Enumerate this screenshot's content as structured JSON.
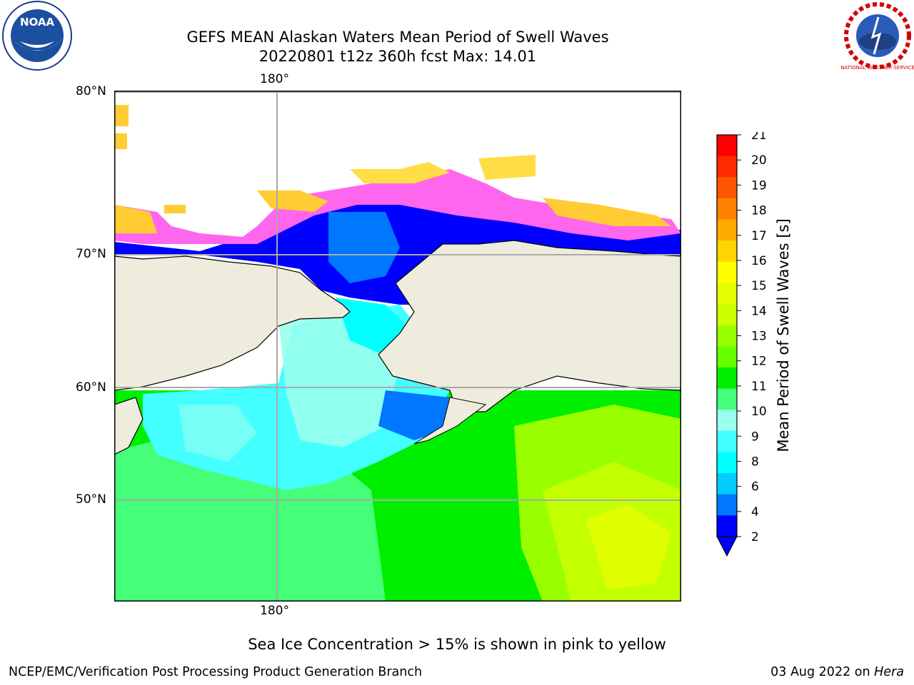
{
  "title_line1": "GEFS MEAN Alaskan Waters Mean Period of Swell Waves",
  "title_line2": "20220801 t12z 360h fcst   Max: 14.01",
  "lat_labels": [
    "80°N",
    "70°N",
    "60°N",
    "50°N"
  ],
  "lon_label_top": "180°",
  "lon_label_bottom": "180°",
  "colorbar": {
    "label": "Mean Period of Swell Waves [s]",
    "ticks": [
      "21",
      "20",
      "19",
      "18",
      "17",
      "16",
      "15",
      "14",
      "13",
      "12",
      "11",
      "10",
      "9",
      "8",
      "6",
      "4",
      "2"
    ],
    "colors": [
      "#ff0000",
      "#ff2a00",
      "#ff5500",
      "#ff8000",
      "#ffaa00",
      "#ffd500",
      "#ffff00",
      "#e6ff00",
      "#ccff00",
      "#99ff00",
      "#66ff00",
      "#00ee00",
      "#44ff77",
      "#99ffee",
      "#44ffff",
      "#00ffff",
      "#00ccff",
      "#0077ff",
      "#0000ff"
    ]
  },
  "ice_note": "Sea Ice Concentration > 15% is shown in pink to yellow",
  "footer_left": "NCEP/EMC/Verification Post Processing Product Generation Branch",
  "footer_right_date": "03 Aug 2022 on ",
  "footer_right_host": "Hera",
  "logos": {
    "left": "NOAA",
    "right_text": "NATIONAL WEATHER SERVICE"
  }
}
